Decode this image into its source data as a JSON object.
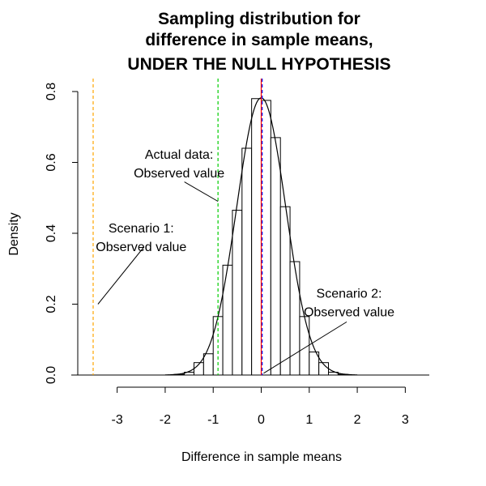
{
  "chart_data": {
    "type": "bar",
    "title_lines": [
      "Sampling distribution for",
      "difference in sample means,",
      "UNDER THE NULL HYPOTHESIS"
    ],
    "xlabel": "Difference in sample means",
    "ylabel": "Density",
    "xlim": [
      -3.5,
      3.5
    ],
    "ylim": [
      0,
      0.8
    ],
    "x_ticks": [
      -3,
      -2,
      -1,
      0,
      1,
      2,
      3
    ],
    "y_ticks": [
      0.0,
      0.2,
      0.4,
      0.6,
      0.8
    ],
    "y_tick_labels": [
      "0.0",
      "0.2",
      "0.4",
      "0.6",
      "0.8"
    ],
    "histogram": {
      "bin_width": 0.2,
      "bins": [
        {
          "x0": -1.8,
          "density": 0.002
        },
        {
          "x0": -1.6,
          "density": 0.008
        },
        {
          "x0": -1.4,
          "density": 0.035
        },
        {
          "x0": -1.2,
          "density": 0.06
        },
        {
          "x0": -1.0,
          "density": 0.165
        },
        {
          "x0": -0.8,
          "density": 0.31
        },
        {
          "x0": -0.6,
          "density": 0.465
        },
        {
          "x0": -0.4,
          "density": 0.64
        },
        {
          "x0": -0.2,
          "density": 0.78
        },
        {
          "x0": 0.0,
          "density": 0.775
        },
        {
          "x0": 0.2,
          "density": 0.67
        },
        {
          "x0": 0.4,
          "density": 0.475
        },
        {
          "x0": 0.6,
          "density": 0.32
        },
        {
          "x0": 0.8,
          "density": 0.165
        },
        {
          "x0": 1.0,
          "density": 0.065
        },
        {
          "x0": 1.2,
          "density": 0.035
        },
        {
          "x0": 1.4,
          "density": 0.008
        },
        {
          "x0": 1.6,
          "density": 0.002
        }
      ]
    },
    "density_curve": {
      "mean": 0.0,
      "sd": 0.51
    },
    "reference_lines": [
      {
        "id": "scenario-1",
        "x": -3.5,
        "color": "#FFA500",
        "style": "dashed"
      },
      {
        "id": "actual-data",
        "x": -0.9,
        "color": "#00CC00",
        "style": "dashed"
      },
      {
        "id": "null-red",
        "x": 0.0,
        "color": "#FF0000",
        "style": "solid"
      },
      {
        "id": "null-blue",
        "x": 0.02,
        "color": "#0000FF",
        "style": "dashed"
      }
    ],
    "annotations": [
      {
        "id": "actual-data",
        "lines": [
          "Actual data:",
          "Observed value"
        ],
        "text_x": -1.71,
        "text_y": 0.61,
        "pointer": {
          "x0": -1.6,
          "y0": 0.545,
          "x1": -0.9,
          "y1": 0.49
        }
      },
      {
        "id": "scenario-1",
        "lines": [
          "Scenario 1:",
          "Observed value"
        ],
        "text_x": -2.5,
        "text_y": 0.402,
        "pointer": {
          "x0": -2.45,
          "y0": 0.36,
          "x1": -3.4,
          "y1": 0.2
        }
      },
      {
        "id": "scenario-2",
        "lines": [
          "Scenario 2:",
          "Observed value"
        ],
        "text_x": 1.83,
        "text_y": 0.218,
        "pointer": {
          "x0": 1.78,
          "y0": 0.15,
          "x1": 0.05,
          "y1": 0.005
        }
      }
    ]
  }
}
